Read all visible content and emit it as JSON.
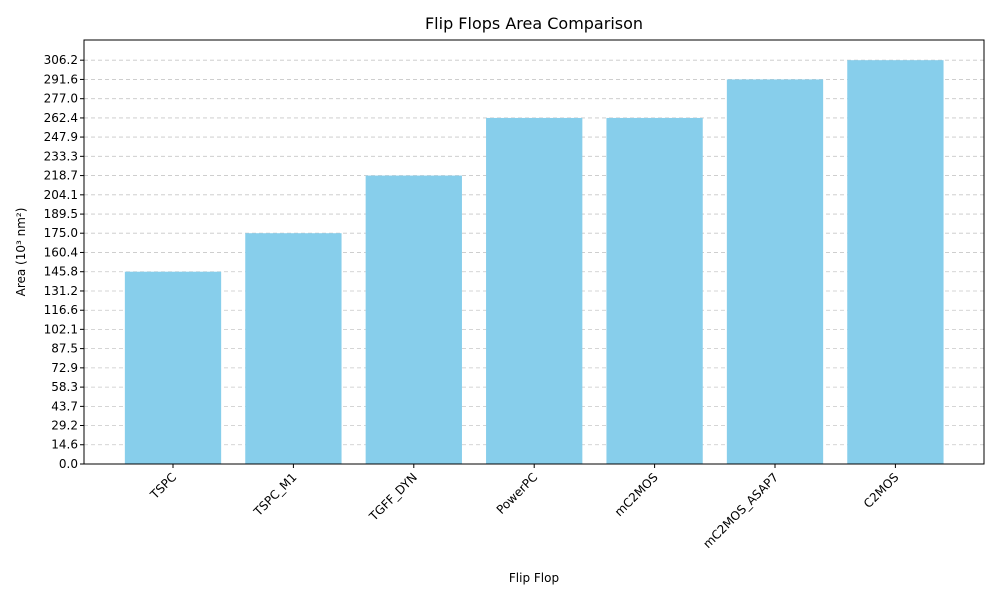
{
  "chart_data": {
    "type": "bar",
    "title": "Flip Flops Area Comparison",
    "xlabel": "Flip Flop",
    "ylabel": "Area (10³ nm²)",
    "categories": [
      "TSPC",
      "TSPC_M1",
      "TGFF_DYN",
      "PowerPC",
      "mC2MOS",
      "mC2MOS_ASAP7",
      "C2MOS"
    ],
    "values": [
      145.8,
      175.0,
      218.7,
      262.4,
      262.4,
      291.6,
      306.2
    ],
    "yticks": [
      "0.0",
      "14.6",
      "29.2",
      "43.7",
      "58.3",
      "72.9",
      "87.5",
      "102.1",
      "116.6",
      "131.2",
      "145.8",
      "160.4",
      "175.0",
      "189.5",
      "204.1",
      "218.7",
      "233.3",
      "247.9",
      "262.4",
      "277.0",
      "291.6",
      "306.2"
    ],
    "ylim": [
      0,
      321.5
    ],
    "bar_color": "#87ceeb",
    "grid": "y-dashed",
    "xtick_rotation": 45
  }
}
